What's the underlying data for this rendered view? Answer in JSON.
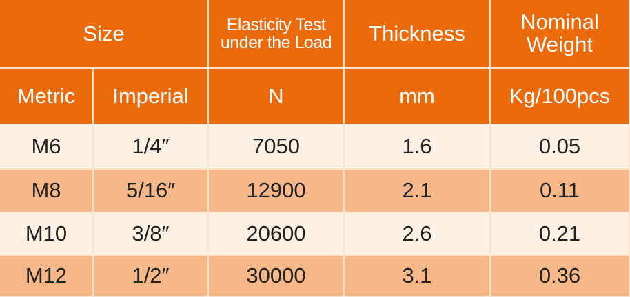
{
  "table": {
    "header_top": [
      "Size",
      "Elasticity Test under the Load",
      "Thickness",
      "Nominal Weight"
    ],
    "header_sub": [
      "Metric",
      "Imperial",
      "N",
      "mm",
      "Kg/100pcs"
    ],
    "rows": [
      [
        "M6",
        "1/4″",
        "7050",
        "1.6",
        "0.05"
      ],
      [
        "M8",
        "5/16″",
        "12900",
        "2.1",
        "0.11"
      ],
      [
        "M10",
        "3/8″",
        "20600",
        "2.6",
        "0.21"
      ],
      [
        "M12",
        "1/2″",
        "30000",
        "3.1",
        "0.36"
      ]
    ]
  }
}
